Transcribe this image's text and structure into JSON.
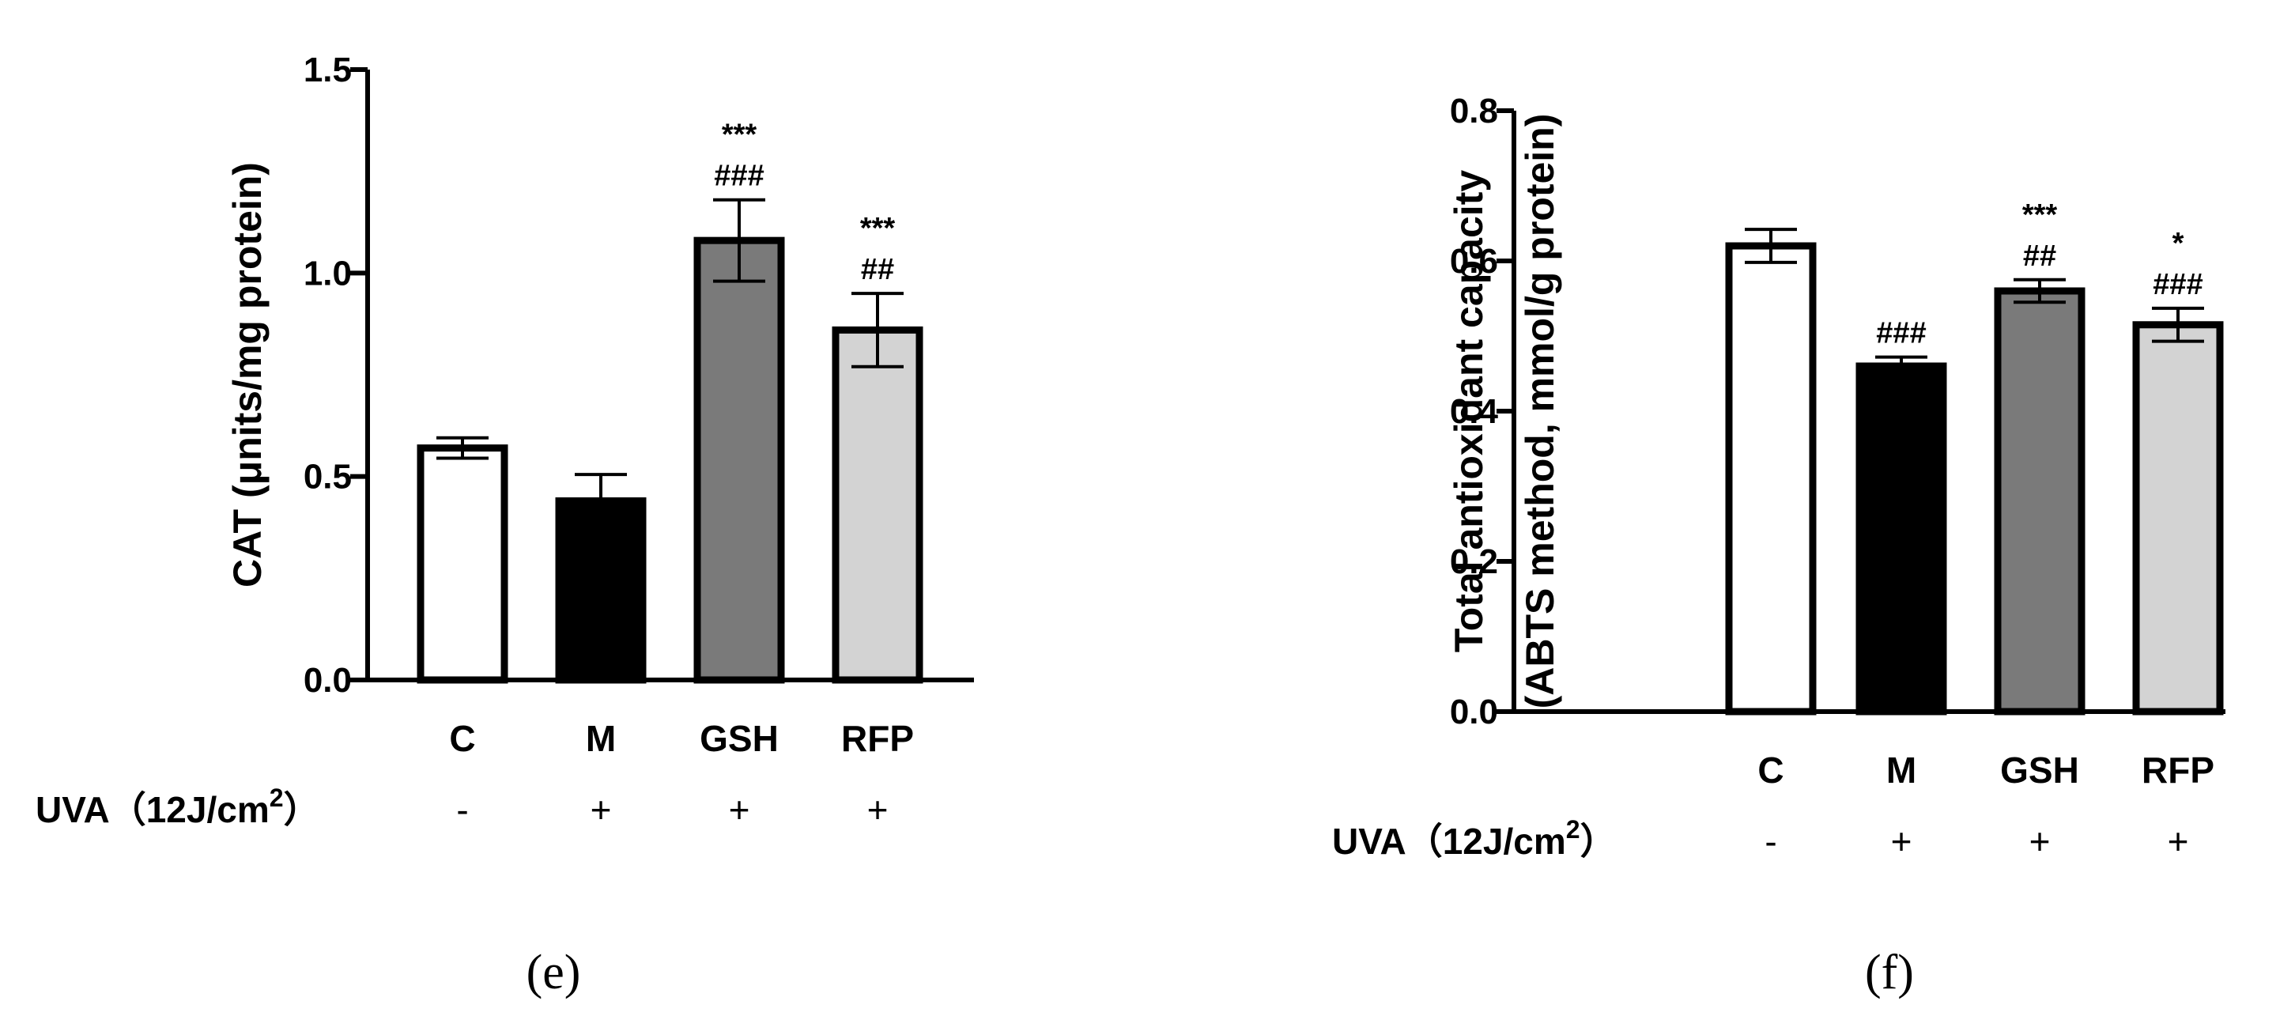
{
  "chart_data": [
    {
      "type": "bar",
      "categories": [
        "C",
        "M",
        "GSH",
        "RFP"
      ],
      "values": [
        0.57,
        0.44,
        1.08,
        0.86
      ],
      "errors": [
        0.025,
        0.065,
        0.1,
        0.09
      ],
      "annotations": [
        [
          "",
          ""
        ],
        [
          "",
          ""
        ],
        [
          "***",
          "###"
        ],
        [
          "***",
          "##"
        ]
      ],
      "bar_colors": [
        "#ffffff",
        "#000000",
        "#7a7a7a",
        "#d3d3d3"
      ],
      "ylabel": "CAT (μnits/mg protein)",
      "yticks": [
        "0.0",
        "0.5",
        "1.0",
        "1.5"
      ],
      "ylim": [
        0,
        1.5
      ],
      "uva_label": "UVA（12J/cm",
      "uva_sup": "2",
      "uva_close": "）",
      "uva_values": [
        "-",
        "+",
        "+",
        "+"
      ],
      "panel_label": "(e)"
    },
    {
      "type": "bar",
      "categories": [
        "C",
        "M",
        "GSH",
        "RFP"
      ],
      "values": [
        0.62,
        0.46,
        0.56,
        0.515
      ],
      "errors": [
        0.022,
        0.012,
        0.015,
        0.022
      ],
      "annotations": [
        [
          "",
          ""
        ],
        [
          "",
          "###"
        ],
        [
          "***",
          "##"
        ],
        [
          "*",
          "###"
        ]
      ],
      "bar_colors": [
        "#ffffff",
        "#000000",
        "#7a7a7a",
        "#d3d3d3"
      ],
      "ylabel_line1": "Total antioxidant capacity",
      "ylabel_line2": "(ABTS method, mmol/g protein)",
      "yticks": [
        "0.0",
        "0.2",
        "0.4",
        "0.6",
        "0.8"
      ],
      "ylim": [
        0,
        0.8
      ],
      "uva_label": "UVA（12J/cm",
      "uva_sup": "2",
      "uva_close": "）",
      "uva_values": [
        "-",
        "+",
        "+",
        "+"
      ],
      "panel_label": "(f)"
    }
  ]
}
